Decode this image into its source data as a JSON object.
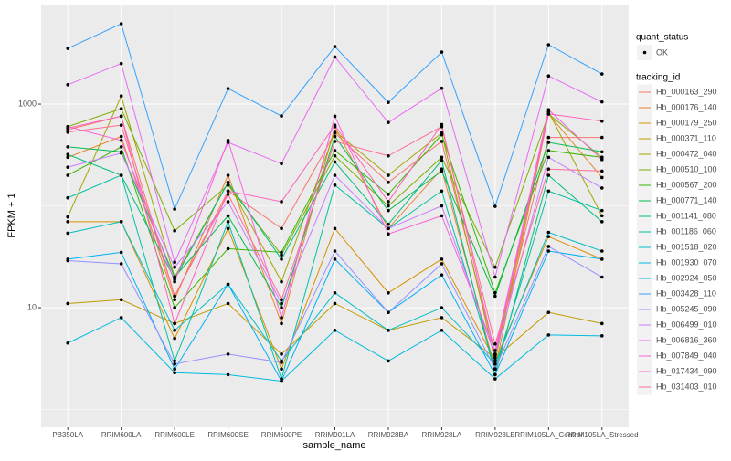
{
  "chart_data": {
    "type": "line",
    "log_y": true,
    "grid": true,
    "x_label": "sample_name",
    "y_label": "FPKM + 1",
    "categories": [
      "PB350LA",
      "RRIM600LA",
      "RRIM600LE",
      "RRIM600SE",
      "RRIM600PE",
      "RRIM901LA",
      "RRIM928BA",
      "RRIM928LA",
      "RRIM928LE",
      "RRIM105LA_Control",
      "RRIM105LA_Stressed"
    ],
    "ylim": [
      0.67,
      9500
    ],
    "yticks": [
      10,
      1000
    ],
    "status_legend": {
      "title": "quant_status",
      "label": "OK"
    },
    "legend_title": "tracking_id",
    "series": [
      {
        "name": "Hb_000163_290",
        "color": "#F8766D",
        "values": [
          560,
          760,
          13,
          140,
          60,
          520,
          170,
          430,
          3.5,
          470,
          470
        ]
      },
      {
        "name": "Hb_000176_140",
        "color": "#EA8331",
        "values": [
          300,
          480,
          12,
          200,
          7,
          600,
          60,
          230,
          2.5,
          800,
          190
        ]
      },
      {
        "name": "Hb_000179_250",
        "color": "#D89000",
        "values": [
          70,
          70,
          5,
          60,
          2.5,
          60,
          14,
          30,
          3,
          50,
          30
        ]
      },
      {
        "name": "Hb_000371_110",
        "color": "#C09B00",
        "values": [
          11,
          12,
          7,
          11,
          3.5,
          11,
          6,
          8,
          3.2,
          9,
          7
        ]
      },
      {
        "name": "Hb_000472_040",
        "color": "#A3A500",
        "values": [
          78,
          1200,
          20,
          170,
          18,
          540,
          200,
          520,
          3,
          840,
          80
        ]
      },
      {
        "name": "Hb_000510_100",
        "color": "#7CAE00",
        "values": [
          600,
          900,
          57,
          160,
          33,
          310,
          100,
          300,
          25,
          800,
          300
        ]
      },
      {
        "name": "Hb_000567_200",
        "color": "#39B600",
        "values": [
          200,
          380,
          10,
          38,
          35,
          350,
          130,
          500,
          14,
          350,
          300
        ]
      },
      {
        "name": "Hb_000771_140",
        "color": "#00BB4E",
        "values": [
          380,
          340,
          20,
          80,
          10,
          480,
          90,
          220,
          13,
          420,
          340
        ]
      },
      {
        "name": "Hb_001141_080",
        "color": "#00BF7D",
        "values": [
          320,
          200,
          19,
          170,
          30,
          270,
          66,
          280,
          2.2,
          200,
          70
        ]
      },
      {
        "name": "Hb_001186_060",
        "color": "#00C1A3",
        "values": [
          120,
          200,
          3,
          70,
          2,
          160,
          60,
          140,
          2.5,
          140,
          90
        ]
      },
      {
        "name": "Hb_001518_020",
        "color": "#00BFC4",
        "values": [
          54,
          70,
          6,
          17,
          3,
          14,
          6,
          10,
          2.8,
          55,
          36
        ]
      },
      {
        "name": "Hb_001930_070",
        "color": "#00BAE0",
        "values": [
          4.5,
          8,
          2.3,
          2.2,
          1.9,
          6,
          3,
          6,
          2,
          5.4,
          5.3
        ]
      },
      {
        "name": "Hb_002924_050",
        "color": "#00B0F6",
        "values": [
          30,
          35,
          2.5,
          17,
          1.9,
          30,
          9,
          21,
          2.2,
          36,
          30
        ]
      },
      {
        "name": "Hb_003428_110",
        "color": "#35A2FF",
        "values": [
          3525,
          6150,
          93,
          1420,
          764,
          3670,
          1040,
          3240,
          99,
          3830,
          1977
        ]
      },
      {
        "name": "Hb_005245_090",
        "color": "#9590FF",
        "values": [
          29,
          27,
          2.8,
          3.5,
          2.9,
          36,
          9,
          27,
          2.5,
          40,
          20
        ]
      },
      {
        "name": "Hb_006499_010",
        "color": "#C77CFF",
        "values": [
          240,
          330,
          25,
          110,
          11,
          200,
          60,
          100,
          3.4,
          300,
          150
        ]
      },
      {
        "name": "Hb_006816_360",
        "color": "#E76BF3",
        "values": [
          1550,
          2500,
          28,
          420,
          260,
          2900,
          660,
          1430,
          20,
          1890,
          1050
        ]
      },
      {
        "name": "Hb_007849_040",
        "color": "#FA62DB",
        "values": [
          600,
          440,
          18,
          440,
          8,
          760,
          53,
          80,
          3.8,
          880,
          285
        ]
      },
      {
        "name": "Hb_017434_090",
        "color": "#FF62BC",
        "values": [
          580,
          760,
          7,
          140,
          110,
          620,
          110,
          630,
          3.5,
          800,
          680
        ]
      },
      {
        "name": "Hb_031403_010",
        "color": "#FF6C91",
        "values": [
          530,
          620,
          13,
          130,
          12,
          430,
          310,
          600,
          4.4,
          230,
          220
        ]
      }
    ]
  }
}
